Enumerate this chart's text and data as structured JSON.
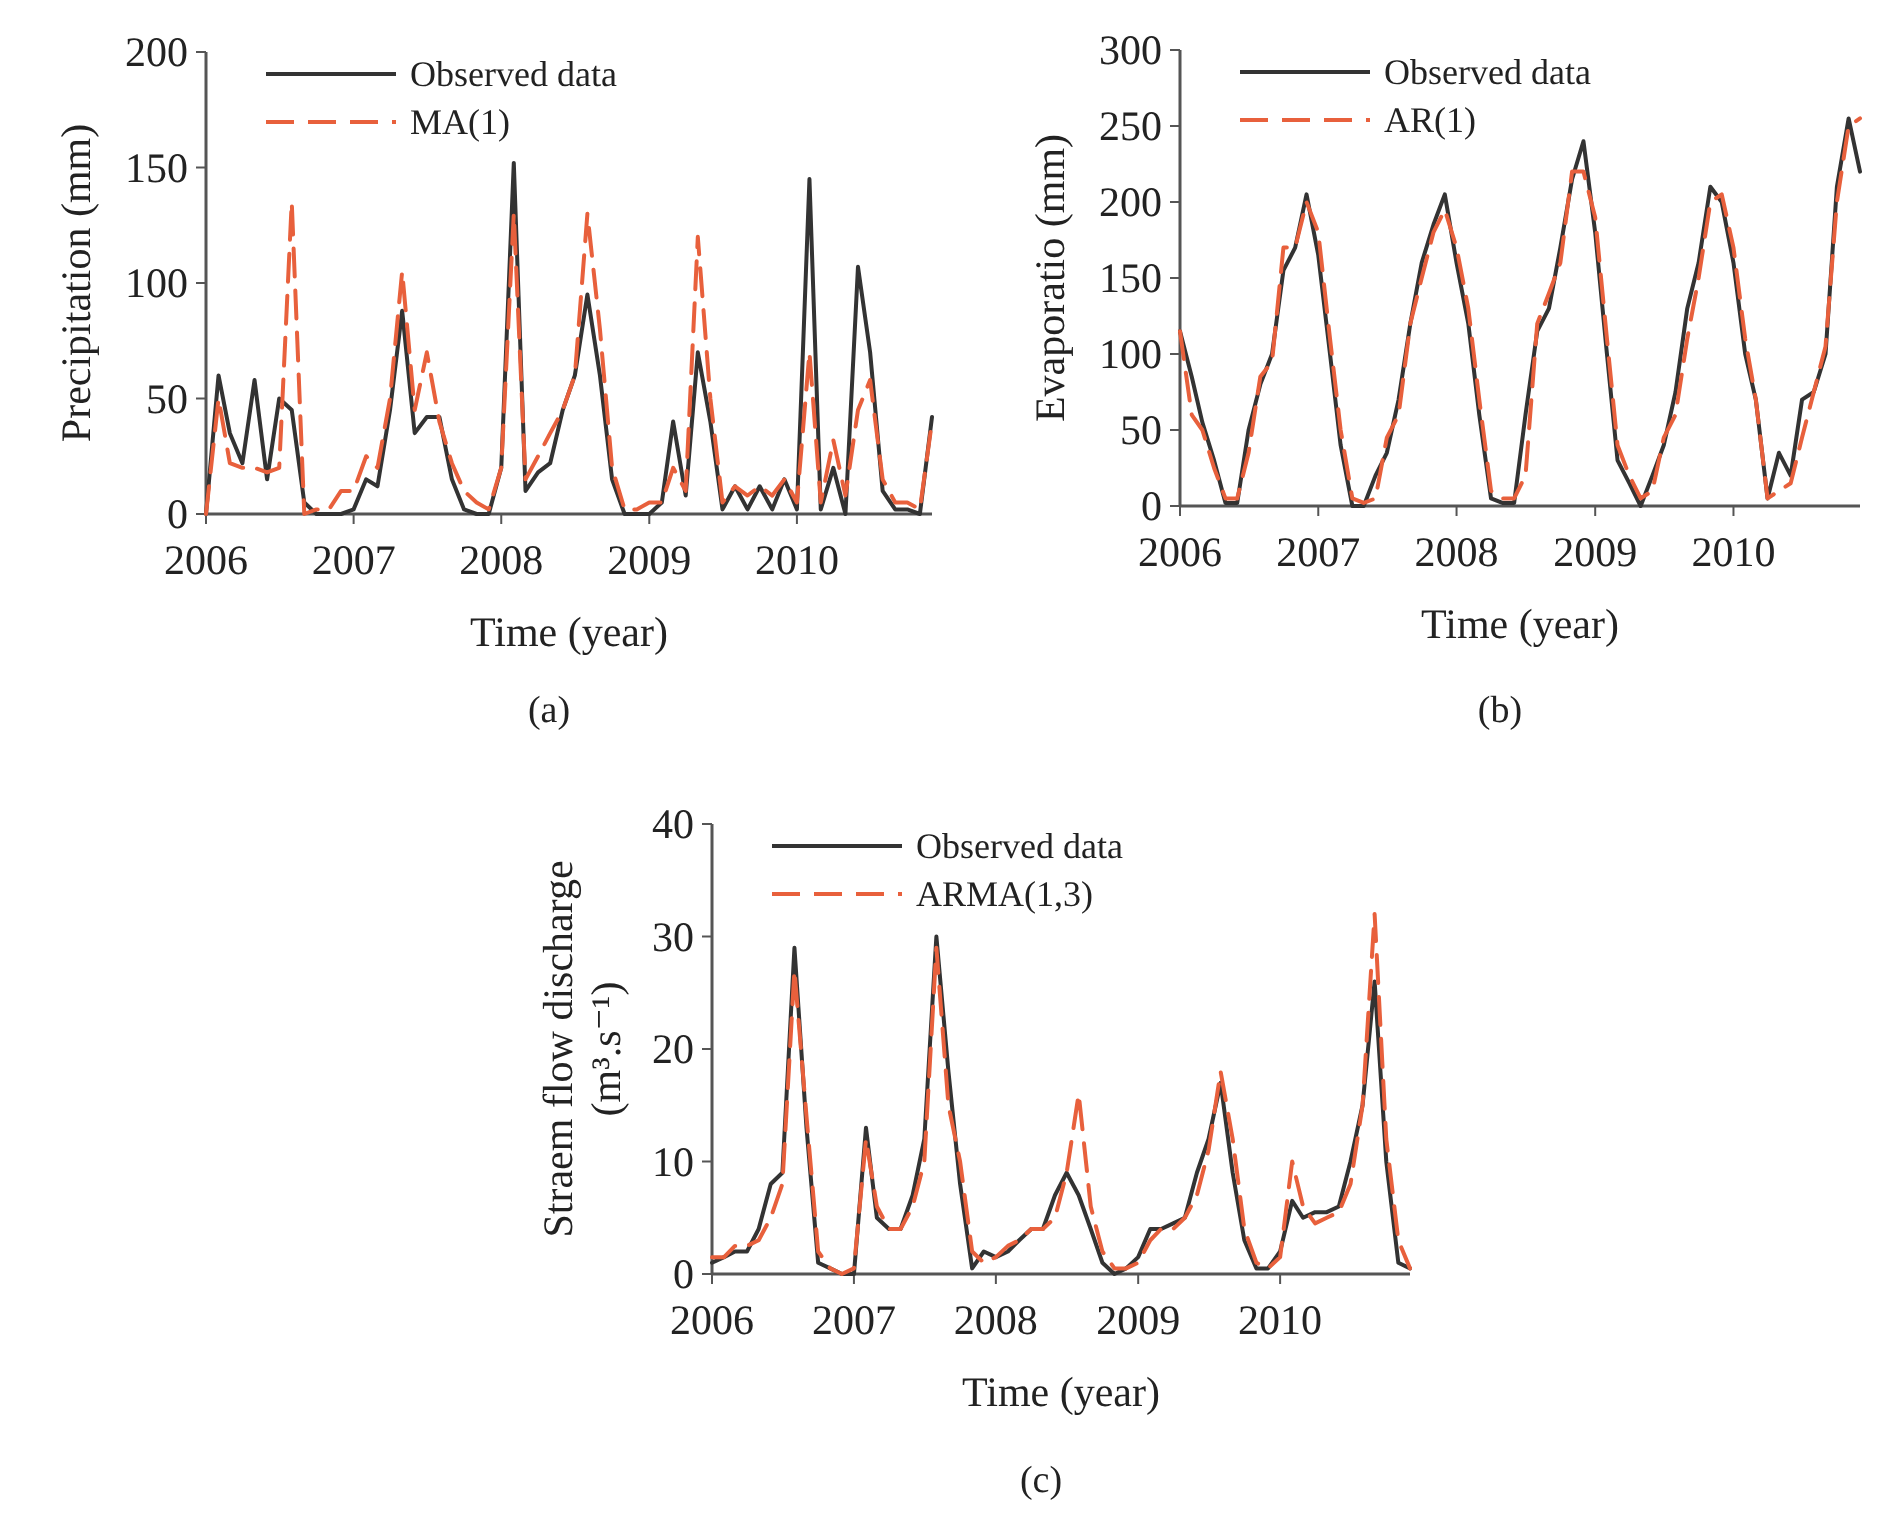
{
  "chart_data": [
    {
      "type": "line",
      "xlabel": "Time (year)",
      "ylabel": "Precipitation (mm)",
      "annotations": [
        "(a)"
      ],
      "x": [
        "2006-01",
        "2006-02",
        "2006-03",
        "2006-04",
        "2006-05",
        "2006-06",
        "2006-07",
        "2006-08",
        "2006-09",
        "2006-10",
        "2006-11",
        "2006-12",
        "2007-01",
        "2007-02",
        "2007-03",
        "2007-04",
        "2007-05",
        "2007-06",
        "2007-07",
        "2007-08",
        "2007-09",
        "2007-10",
        "2007-11",
        "2007-12",
        "2008-01",
        "2008-02",
        "2008-03",
        "2008-04",
        "2008-05",
        "2008-06",
        "2008-07",
        "2008-08",
        "2008-09",
        "2008-10",
        "2008-11",
        "2008-12",
        "2009-01",
        "2009-02",
        "2009-03",
        "2009-04",
        "2009-05",
        "2009-06",
        "2009-07",
        "2009-08",
        "2009-09",
        "2009-10",
        "2009-11",
        "2009-12",
        "2010-01",
        "2010-02",
        "2010-03",
        "2010-04",
        "2010-05",
        "2010-06",
        "2010-07",
        "2010-08",
        "2010-09",
        "2010-10",
        "2010-11",
        "2010-12"
      ],
      "xlim": [
        "2006-01",
        "2010-12"
      ],
      "xticks": [
        "2006",
        "2007",
        "2008",
        "2009",
        "2010"
      ],
      "ylim": [
        0,
        200
      ],
      "yticks": [
        0,
        50,
        100,
        150,
        200
      ],
      "legend": "top left",
      "marker": "none",
      "series": [
        {
          "name": "Observed data",
          "color": "#333333",
          "line_style": "solid",
          "values": [
            0,
            60,
            35,
            22,
            58,
            15,
            50,
            45,
            5,
            0,
            0,
            0,
            2,
            15,
            12,
            45,
            88,
            35,
            42,
            42,
            15,
            2,
            0,
            0,
            20,
            152,
            10,
            18,
            22,
            45,
            60,
            95,
            60,
            15,
            0,
            0,
            0,
            5,
            40,
            8,
            70,
            40,
            2,
            12,
            2,
            12,
            2,
            15,
            2,
            145,
            2,
            20,
            0,
            107,
            70,
            10,
            2,
            2,
            0,
            42
          ]
        },
        {
          "name": "MA(1)",
          "color": "#e8603c",
          "line_style": "dashed",
          "values": [
            0,
            50,
            22,
            20,
            20,
            18,
            20,
            135,
            0,
            2,
            2,
            10,
            10,
            25,
            20,
            50,
            105,
            45,
            70,
            40,
            22,
            10,
            5,
            2,
            20,
            130,
            15,
            25,
            35,
            45,
            60,
            130,
            80,
            20,
            2,
            2,
            5,
            5,
            20,
            10,
            120,
            50,
            5,
            12,
            8,
            12,
            8,
            15,
            5,
            70,
            5,
            32,
            8,
            45,
            58,
            15,
            5,
            5,
            2,
            40
          ]
        }
      ]
    },
    {
      "type": "line",
      "xlabel": "Time (year)",
      "ylabel": "Evaporatio (mm)",
      "annotations": [
        "(b)"
      ],
      "x": [
        "2006-01",
        "2006-02",
        "2006-03",
        "2006-04",
        "2006-05",
        "2006-06",
        "2006-07",
        "2006-08",
        "2006-09",
        "2006-10",
        "2006-11",
        "2006-12",
        "2007-01",
        "2007-02",
        "2007-03",
        "2007-04",
        "2007-05",
        "2007-06",
        "2007-07",
        "2007-08",
        "2007-09",
        "2007-10",
        "2007-11",
        "2007-12",
        "2008-01",
        "2008-02",
        "2008-03",
        "2008-04",
        "2008-05",
        "2008-06",
        "2008-07",
        "2008-08",
        "2008-09",
        "2008-10",
        "2008-11",
        "2008-12",
        "2009-01",
        "2009-02",
        "2009-03",
        "2009-04",
        "2009-05",
        "2009-06",
        "2009-07",
        "2009-08",
        "2009-09",
        "2009-10",
        "2009-11",
        "2009-12",
        "2010-01",
        "2010-02",
        "2010-03",
        "2010-04",
        "2010-05",
        "2010-06",
        "2010-07",
        "2010-08",
        "2010-09",
        "2010-10",
        "2010-11",
        "2010-12"
      ],
      "xlim": [
        "2006-01",
        "2010-12"
      ],
      "xticks": [
        "2006",
        "2007",
        "2008",
        "2009",
        "2010"
      ],
      "ylim": [
        0,
        300
      ],
      "yticks": [
        0,
        50,
        100,
        150,
        200,
        250,
        300
      ],
      "legend": "top left",
      "marker": "none",
      "series": [
        {
          "name": "Observed data",
          "color": "#333333",
          "line_style": "solid",
          "values": [
            115,
            85,
            55,
            30,
            2,
            2,
            50,
            80,
            100,
            155,
            170,
            205,
            165,
            100,
            40,
            0,
            0,
            20,
            35,
            70,
            120,
            160,
            185,
            205,
            160,
            120,
            60,
            5,
            2,
            2,
            60,
            115,
            130,
            170,
            215,
            240,
            180,
            100,
            30,
            15,
            0,
            20,
            40,
            75,
            130,
            160,
            210,
            200,
            160,
            100,
            70,
            5,
            35,
            20,
            70,
            75,
            100,
            210,
            255,
            220
          ]
        },
        {
          "name": "AR(1)",
          "color": "#e8603c",
          "line_style": "dashed",
          "values": [
            115,
            60,
            50,
            25,
            5,
            5,
            35,
            85,
            95,
            170,
            170,
            200,
            180,
            110,
            50,
            5,
            2,
            5,
            45,
            60,
            120,
            150,
            180,
            195,
            170,
            130,
            70,
            10,
            5,
            5,
            20,
            120,
            140,
            160,
            220,
            220,
            190,
            110,
            40,
            20,
            5,
            10,
            45,
            60,
            110,
            150,
            200,
            205,
            170,
            110,
            70,
            5,
            10,
            15,
            45,
            75,
            105,
            200,
            250,
            255
          ]
        }
      ]
    },
    {
      "type": "line",
      "xlabel": "Time (year)",
      "ylabel": "Straem flow discharge (m³.s⁻¹)",
      "annotations": [
        "(c)"
      ],
      "x": [
        "2006-01",
        "2006-02",
        "2006-03",
        "2006-04",
        "2006-05",
        "2006-06",
        "2006-07",
        "2006-08",
        "2006-09",
        "2006-10",
        "2006-11",
        "2006-12",
        "2007-01",
        "2007-02",
        "2007-03",
        "2007-04",
        "2007-05",
        "2007-06",
        "2007-07",
        "2007-08",
        "2007-09",
        "2007-10",
        "2007-11",
        "2007-12",
        "2008-01",
        "2008-02",
        "2008-03",
        "2008-04",
        "2008-05",
        "2008-06",
        "2008-07",
        "2008-08",
        "2008-09",
        "2008-10",
        "2008-11",
        "2008-12",
        "2009-01",
        "2009-02",
        "2009-03",
        "2009-04",
        "2009-05",
        "2009-06",
        "2009-07",
        "2009-08",
        "2009-09",
        "2009-10",
        "2009-11",
        "2009-12",
        "2010-01",
        "2010-02",
        "2010-03",
        "2010-04",
        "2010-05",
        "2010-06",
        "2010-07",
        "2010-08",
        "2010-09",
        "2010-10",
        "2010-11",
        "2010-12"
      ],
      "xlim": [
        "2006-01",
        "2010-12"
      ],
      "xticks": [
        "2006",
        "2007",
        "2008",
        "2009",
        "2010"
      ],
      "ylim": [
        0,
        40
      ],
      "yticks": [
        0,
        10,
        20,
        30,
        40
      ],
      "legend": "top left",
      "marker": "none",
      "series": [
        {
          "name": "Observed data",
          "color": "#333333",
          "line_style": "solid",
          "values": [
            1,
            1.5,
            2,
            2,
            4,
            8,
            9,
            29,
            13,
            1,
            0.5,
            0,
            0,
            13,
            5,
            4,
            4,
            7,
            12,
            30,
            18,
            8,
            0.5,
            2,
            1.5,
            2,
            3,
            4,
            4,
            7,
            9,
            7,
            4,
            1,
            0,
            0.5,
            1.5,
            4,
            4,
            4.5,
            5,
            9,
            12,
            17,
            9,
            3,
            0.5,
            0.5,
            2,
            6.5,
            5,
            5.5,
            5.5,
            6,
            10,
            15,
            26,
            10,
            1,
            0.5
          ]
        },
        {
          "name": "ARMA(1,3)",
          "color": "#e8603c",
          "line_style": "dashed",
          "values": [
            1.5,
            1.5,
            2.5,
            2.5,
            3,
            5,
            8,
            27,
            14,
            2,
            0.5,
            0,
            0.5,
            12,
            6,
            4,
            4,
            6,
            10,
            29,
            15,
            10,
            2,
            1,
            1.5,
            2.5,
            3,
            4,
            4,
            5,
            9,
            16,
            6,
            2,
            0.5,
            0.5,
            1,
            3,
            4,
            4,
            5,
            7,
            11,
            18,
            12,
            4,
            1,
            0.5,
            1.5,
            10,
            6,
            4.5,
            5,
            5.5,
            8,
            15,
            32,
            12,
            3,
            0.5
          ]
        }
      ]
    }
  ]
}
